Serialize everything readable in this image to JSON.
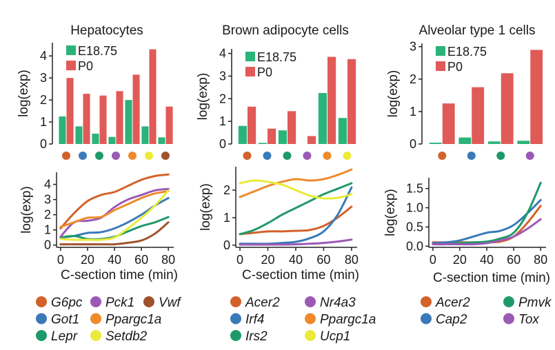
{
  "chart_data": [
    {
      "type": "bar",
      "title": "Hepatocytes",
      "ylabel": "log(exp)",
      "ylim": [
        0,
        4.6
      ],
      "yticks": [
        "0",
        "1",
        "2",
        "3",
        "4"
      ],
      "categories": [
        "G6pc",
        "Got1",
        "Lepr",
        "Pck1",
        "Ppargc1a",
        "Setdb2",
        "Vwf"
      ],
      "category_colors": [
        "#d2622a",
        "#3a7ab8",
        "#1e9a6a",
        "#9b59b6",
        "#ef8a2b",
        "#eaea3a",
        "#a0522d"
      ],
      "series": [
        {
          "name": "E18.75",
          "color": "#2bb47a",
          "values": [
            1.25,
            0.8,
            0.47,
            0.32,
            2.0,
            0.8,
            0.3
          ]
        },
        {
          "name": "P0",
          "color": "#e05a58",
          "values": [
            3.0,
            2.28,
            2.2,
            2.4,
            3.15,
            4.3,
            1.7
          ]
        }
      ]
    },
    {
      "type": "bar",
      "title": "Brown adipocyte cells",
      "ylabel": "log(exp)",
      "ylim": [
        0,
        4.2
      ],
      "yticks": [
        "0",
        "1",
        "2",
        "3",
        "4"
      ],
      "categories": [
        "Acer2",
        "Irf4",
        "Irs2",
        "Nr4a3",
        "Ppargc1a",
        "Ucp1"
      ],
      "category_colors": [
        "#d2622a",
        "#3a7ab8",
        "#1e9a6a",
        "#9b59b6",
        "#ef8a2b",
        "#eaea3a"
      ],
      "series": [
        {
          "name": "E18.75",
          "color": "#2bb47a",
          "values": [
            0.8,
            0.05,
            0.6,
            0.0,
            2.25,
            1.15
          ]
        },
        {
          "name": "P0",
          "color": "#e05a58",
          "values": [
            1.65,
            0.68,
            1.45,
            0.35,
            3.85,
            3.75
          ]
        }
      ]
    },
    {
      "type": "bar",
      "title": "Alveolar type 1 cells",
      "ylabel": "log(exp)",
      "ylim": [
        0,
        3.1
      ],
      "yticks": [
        "0",
        "1",
        "2",
        "3"
      ],
      "categories": [
        "Acer2",
        "Cap2",
        "Pmvk",
        "Tox"
      ],
      "category_colors": [
        "#d2622a",
        "#3a7ab8",
        "#1e9a6a",
        "#9b59b6"
      ],
      "series": [
        {
          "name": "E18.75",
          "color": "#2bb47a",
          "values": [
            0.04,
            0.2,
            0.08,
            0.1
          ]
        },
        {
          "name": "P0",
          "color": "#e05a58",
          "values": [
            1.25,
            1.75,
            2.18,
            2.9
          ]
        }
      ]
    },
    {
      "type": "line",
      "xlabel": "C-section time (min)",
      "ylabel": "log(exp)",
      "xlim": [
        -3,
        84
      ],
      "ylim": [
        -0.15,
        4.8
      ],
      "xticks": [
        "0",
        "20",
        "40",
        "60",
        "80"
      ],
      "yticks": [
        "0",
        "1",
        "2",
        "3",
        "4"
      ],
      "x": [
        0,
        10,
        20,
        30,
        40,
        50,
        60,
        70,
        80
      ],
      "series": [
        {
          "name": "G6pc",
          "color": "#d2622a",
          "values": [
            1.1,
            2.1,
            2.9,
            3.3,
            3.5,
            3.9,
            4.3,
            4.55,
            4.65
          ]
        },
        {
          "name": "Got1",
          "color": "#3a7ab8",
          "values": [
            0.5,
            0.6,
            0.8,
            0.85,
            1.1,
            1.5,
            2.0,
            2.6,
            3.1
          ]
        },
        {
          "name": "Lepr",
          "color": "#1e9a6a",
          "values": [
            0.5,
            0.6,
            0.4,
            0.4,
            0.55,
            0.9,
            1.25,
            1.5,
            1.85
          ]
        },
        {
          "name": "Pck1",
          "color": "#9b59b6",
          "values": [
            0.55,
            1.5,
            1.6,
            1.8,
            2.5,
            3.0,
            3.3,
            3.6,
            3.7
          ]
        },
        {
          "name": "Ppargc1a",
          "color": "#ef8a2b",
          "values": [
            1.2,
            1.5,
            1.8,
            1.85,
            2.3,
            2.7,
            3.1,
            3.4,
            3.55
          ]
        },
        {
          "name": "Setdb2",
          "color": "#eaea3a",
          "values": [
            0.4,
            0.35,
            0.35,
            0.35,
            0.5,
            1.1,
            1.8,
            2.6,
            3.6
          ]
        },
        {
          "name": "Vwf",
          "color": "#a0522d",
          "values": [
            0.05,
            0.05,
            0.05,
            0.05,
            0.05,
            0.15,
            0.3,
            0.75,
            1.5
          ]
        }
      ]
    },
    {
      "type": "line",
      "xlabel": "C-section time (min)",
      "ylabel": "log(exp)",
      "xlim": [
        -3,
        84
      ],
      "ylim": [
        -0.08,
        2.85
      ],
      "xticks": [
        "0",
        "20",
        "40",
        "60",
        "80"
      ],
      "yticks": [
        "0",
        "1",
        "2"
      ],
      "x": [
        0,
        10,
        20,
        30,
        40,
        50,
        60,
        70,
        80
      ],
      "series": [
        {
          "name": "Acer2",
          "color": "#d2622a",
          "values": [
            0.4,
            0.45,
            0.5,
            0.5,
            0.52,
            0.55,
            0.7,
            1.0,
            1.4
          ]
        },
        {
          "name": "Irf4",
          "color": "#3a7ab8",
          "values": [
            0.05,
            0.05,
            0.05,
            0.08,
            0.12,
            0.25,
            0.5,
            1.1,
            2.1
          ]
        },
        {
          "name": "Irs2",
          "color": "#1e9a6a",
          "values": [
            0.4,
            0.55,
            0.8,
            1.1,
            1.35,
            1.6,
            1.85,
            2.05,
            2.25
          ]
        },
        {
          "name": "Nr4a3",
          "color": "#9b59b6",
          "values": [
            0.02,
            0.02,
            0.02,
            0.02,
            0.03,
            0.05,
            0.08,
            0.13,
            0.2
          ]
        },
        {
          "name": "Ppargc1a",
          "color": "#ef8a2b",
          "values": [
            1.75,
            1.95,
            2.15,
            2.3,
            2.4,
            2.35,
            2.4,
            2.55,
            2.75
          ]
        },
        {
          "name": "Ucp1",
          "color": "#eaea3a",
          "values": [
            2.25,
            2.35,
            2.3,
            2.2,
            2.0,
            1.8,
            1.7,
            1.72,
            1.85
          ]
        }
      ]
    },
    {
      "type": "line",
      "xlabel": "C-section time (min)",
      "ylabel": "log(exp)",
      "xlim": [
        -3,
        84
      ],
      "ylim": [
        -0.03,
        1.78
      ],
      "xticks": [
        "0",
        "20",
        "40",
        "60",
        "80"
      ],
      "yticks": [
        "0.0",
        "0.5",
        "1.0",
        "1.5"
      ],
      "x": [
        0,
        10,
        20,
        30,
        40,
        50,
        60,
        70,
        80
      ],
      "series": [
        {
          "name": "Acer2",
          "color": "#d2622a",
          "values": [
            0.1,
            0.1,
            0.1,
            0.1,
            0.1,
            0.12,
            0.25,
            0.6,
            1.05
          ]
        },
        {
          "name": "Cap2",
          "color": "#3a7ab8",
          "values": [
            0.08,
            0.1,
            0.15,
            0.25,
            0.35,
            0.4,
            0.55,
            0.85,
            1.2
          ]
        },
        {
          "name": "Pmvk",
          "color": "#1e9a6a",
          "values": [
            0.05,
            0.05,
            0.08,
            0.1,
            0.12,
            0.2,
            0.35,
            0.85,
            1.65
          ]
        },
        {
          "name": "Tox",
          "color": "#9b59b6",
          "values": [
            0.05,
            0.05,
            0.05,
            0.05,
            0.08,
            0.15,
            0.25,
            0.45,
            0.7
          ]
        }
      ]
    }
  ]
}
